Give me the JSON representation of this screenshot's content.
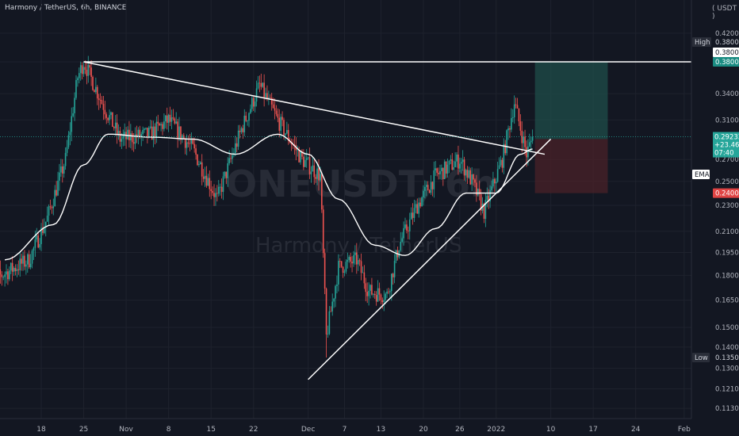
{
  "header": {
    "title": "Harmony / TetherUS, 6h, BINANCE",
    "currency": "USDT"
  },
  "watermark": {
    "symbol": "ONEUSDT, 6h",
    "name": "Harmony / TetherUS"
  },
  "colors": {
    "background": "#131722",
    "up": "#26a69a",
    "down": "#ef5350",
    "ema": "#ffffff",
    "profit_zone": "#1f4e4a",
    "loss_zone": "#4a2228",
    "trendline": "#ffffff"
  },
  "price_tags": {
    "high_label": "High",
    "high_value": "0.38000",
    "target_value": "0.38000",
    "stop_value": "0.24000",
    "entry_value": "0.29000",
    "ema_label": "EMA",
    "last_price": "0.29233",
    "last_change": "+23.46%",
    "countdown": "07:40",
    "low_label": "Low",
    "low_value": "0.13500"
  },
  "chart_data": {
    "type": "candlestick",
    "title": "Harmony / TetherUS, 6h, BINANCE",
    "y_axis_ticks": [
      "0.42000",
      "0.38000",
      "0.34000",
      "0.31000",
      "0.27000",
      "0.25000",
      "0.23000",
      "0.21000",
      "0.19500",
      "0.18000",
      "0.16500",
      "0.15000",
      "0.14000",
      "0.13000",
      "0.12100",
      "0.11300"
    ],
    "x_axis_ticks": [
      "18",
      "25",
      "Nov",
      "8",
      "15",
      "22",
      "Dec",
      "7",
      "13",
      "20",
      "26",
      "2022",
      "10",
      "17",
      "24",
      "Feb"
    ],
    "y_scale": "log",
    "ylim": [
      0.108,
      0.43
    ],
    "anchors": [
      [
        "Oct 16",
        0.19
      ],
      [
        "Oct 19",
        0.22
      ],
      [
        "Oct 22",
        0.27
      ],
      [
        "Oct 24",
        0.36
      ],
      [
        "Oct 25",
        0.38
      ],
      [
        "Oct 28",
        0.33
      ],
      [
        "Oct 31",
        0.29
      ],
      [
        "Nov 5",
        0.295
      ],
      [
        "Nov 8",
        0.31
      ],
      [
        "Nov 12",
        0.28
      ],
      [
        "Nov 16",
        0.235
      ],
      [
        "Nov 20",
        0.3
      ],
      [
        "Nov 23",
        0.35
      ],
      [
        "Nov 26",
        0.31
      ],
      [
        "Nov 30",
        0.27
      ],
      [
        "Dec 3",
        0.255
      ],
      [
        "Dec 4",
        0.145
      ],
      [
        "Dec 6",
        0.185
      ],
      [
        "Dec 9",
        0.19
      ],
      [
        "Dec 11",
        0.17
      ],
      [
        "Dec 14",
        0.168
      ],
      [
        "Dec 16",
        0.2
      ],
      [
        "Dec 19",
        0.23
      ],
      [
        "Dec 22",
        0.255
      ],
      [
        "Dec 26",
        0.27
      ],
      [
        "Dec 28",
        0.25
      ],
      [
        "Dec 30",
        0.225
      ],
      [
        "Jan 2",
        0.27
      ],
      [
        "Jan 4",
        0.33
      ],
      [
        "Jan 6",
        0.275
      ],
      [
        "Jan 7",
        0.292
      ]
    ],
    "ema": [
      [
        "Oct 12",
        0.19
      ],
      [
        "Oct 20",
        0.215
      ],
      [
        "Oct 25",
        0.265
      ],
      [
        "Oct 29",
        0.295
      ],
      [
        "Nov 5",
        0.292
      ],
      [
        "Nov 12",
        0.29
      ],
      [
        "Nov 19",
        0.275
      ],
      [
        "Nov 26",
        0.295
      ],
      [
        "Dec 1",
        0.275
      ],
      [
        "Dec 6",
        0.235
      ],
      [
        "Dec 12",
        0.2
      ],
      [
        "Dec 17",
        0.193
      ],
      [
        "Dec 22",
        0.212
      ],
      [
        "Dec 27",
        0.24
      ],
      [
        "Jan 1",
        0.24
      ],
      [
        "Jan 5",
        0.275
      ],
      [
        "Jan 7",
        0.28
      ]
    ],
    "trendlines": [
      {
        "name": "resistance",
        "from": [
          "Oct 25",
          0.38
        ],
        "to": [
          "Jan 9",
          0.275
        ]
      },
      {
        "name": "support",
        "from": [
          "Dec 1",
          0.125
        ],
        "to": [
          "Jan 10",
          0.29
        ]
      },
      {
        "name": "horizontal-high",
        "from": [
          "Oct 25",
          0.38
        ],
        "to": [
          "Feb 7",
          0.38
        ]
      }
    ],
    "position": {
      "start": "Jan 7",
      "end": "Jan 19",
      "entry": 0.29,
      "target": 0.38,
      "stop": 0.24
    },
    "high": 0.38,
    "low": 0.135,
    "last": 0.29233
  }
}
